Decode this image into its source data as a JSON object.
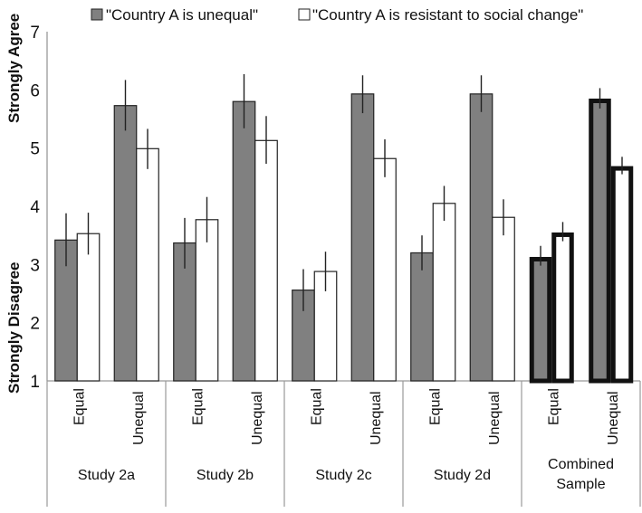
{
  "chart_data": {
    "type": "bar",
    "title": "",
    "ylabel_top": "Strongly Agree",
    "ylabel_bottom": "Strongly Disagree",
    "ylim": [
      1,
      7
    ],
    "yticks": [
      "1",
      "2",
      "3",
      "4",
      "5",
      "6",
      "7"
    ],
    "grid": false,
    "legend_position": "top",
    "colors": {
      "unequal": "#808080",
      "resistant": "#ffffff",
      "edge": "#222222"
    },
    "groups": [
      {
        "name": "Study 2a",
        "lines": [
          "Study 2a"
        ]
      },
      {
        "name": "Study 2b",
        "lines": [
          "Study 2b"
        ]
      },
      {
        "name": "Study 2c",
        "lines": [
          "Study 2c"
        ]
      },
      {
        "name": "Study 2d",
        "lines": [
          "Study 2d"
        ]
      },
      {
        "name": "Combined Sample",
        "lines": [
          "Combined",
          "Sample"
        ],
        "highlight": true
      }
    ],
    "conditions": [
      "Equal",
      "Unequal"
    ],
    "series": [
      {
        "name": "\"Country A is unequal\"",
        "values": [
          [
            3.42,
            5.73
          ],
          [
            3.37,
            5.8
          ],
          [
            2.56,
            5.93
          ],
          [
            3.2,
            5.93
          ],
          [
            3.13,
            5.85
          ]
        ],
        "errors": [
          [
            [
              2.97,
              3.88
            ],
            [
              5.3,
              6.17
            ]
          ],
          [
            [
              2.93,
              3.8
            ],
            [
              5.34,
              6.27
            ]
          ],
          [
            [
              2.2,
              2.92
            ],
            [
              5.6,
              6.25
            ]
          ],
          [
            [
              2.9,
              3.5
            ],
            [
              5.62,
              6.25
            ]
          ],
          [
            [
              2.98,
              3.32
            ],
            [
              5.68,
              6.03
            ]
          ]
        ]
      },
      {
        "name": "\"Country A is resistant to social change\"",
        "values": [
          [
            3.53,
            4.99
          ],
          [
            3.77,
            5.13
          ],
          [
            2.88,
            4.82
          ],
          [
            4.05,
            3.81
          ],
          [
            3.55,
            4.69
          ]
        ],
        "errors": [
          [
            [
              3.17,
              3.89
            ],
            [
              4.64,
              5.33
            ]
          ],
          [
            [
              3.38,
              4.16
            ],
            [
              4.73,
              5.55
            ]
          ],
          [
            [
              2.54,
              3.22
            ],
            [
              4.5,
              5.15
            ]
          ],
          [
            [
              3.75,
              4.35
            ],
            [
              3.5,
              4.12
            ]
          ],
          [
            [
              3.4,
              3.73
            ],
            [
              4.55,
              4.85
            ]
          ]
        ]
      }
    ]
  }
}
